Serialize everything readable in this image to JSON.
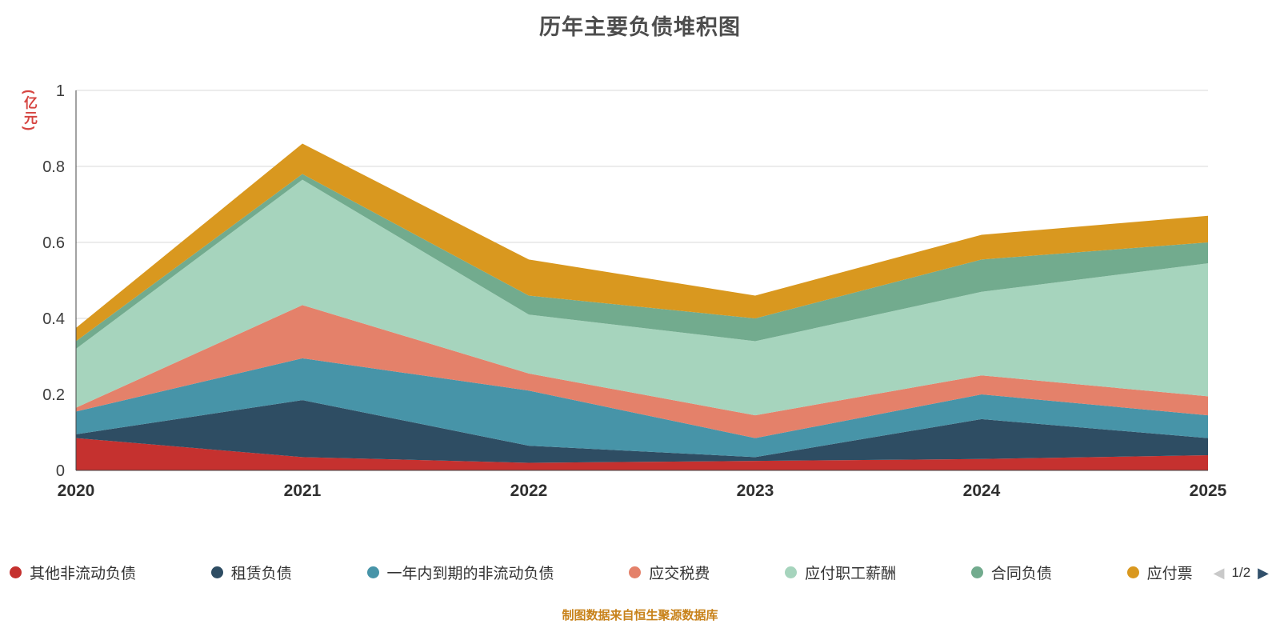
{
  "title": "历年主要负债堆积图",
  "chart_data": {
    "type": "area",
    "stacked": true,
    "title": "历年主要负债堆积图",
    "ylabel": "(亿元)",
    "ylabel_color": "#d64541",
    "x": [
      "2020",
      "2021",
      "2022",
      "2023",
      "2024",
      "2025"
    ],
    "ylim": [
      0,
      1
    ],
    "yticks": [
      "0",
      "0.2",
      "0.4",
      "0.6",
      "0.8",
      "1"
    ],
    "grid": true,
    "legend_position": "bottom",
    "series": [
      {
        "name": "其他非流动负债",
        "color": "#c5312f",
        "values": [
          0.085,
          0.035,
          0.02,
          0.025,
          0.03,
          0.04
        ]
      },
      {
        "name": "租赁负债",
        "color": "#2e4d63",
        "values": [
          0.01,
          0.15,
          0.045,
          0.01,
          0.105,
          0.045
        ]
      },
      {
        "name": "一年内到期的非流动负债",
        "color": "#4794a8",
        "values": [
          0.06,
          0.11,
          0.145,
          0.05,
          0.065,
          0.06
        ]
      },
      {
        "name": "应交税费",
        "color": "#e4816a",
        "values": [
          0.01,
          0.14,
          0.045,
          0.06,
          0.05,
          0.05
        ]
      },
      {
        "name": "应付职工薪酬",
        "color": "#a6d4bd",
        "values": [
          0.155,
          0.33,
          0.155,
          0.195,
          0.22,
          0.35
        ]
      },
      {
        "name": "合同负债",
        "color": "#72ab8e",
        "values": [
          0.02,
          0.015,
          0.05,
          0.06,
          0.085,
          0.055
        ]
      },
      {
        "name": "应付票",
        "color": "#d9981f",
        "values": [
          0.035,
          0.08,
          0.095,
          0.06,
          0.065,
          0.07
        ]
      }
    ]
  },
  "legend": {
    "pagination": {
      "current": "1/2"
    },
    "icons": {
      "prev": "◀",
      "next": "▶"
    }
  },
  "footer": {
    "source_note": "制图数据来自恒生聚源数据库"
  }
}
